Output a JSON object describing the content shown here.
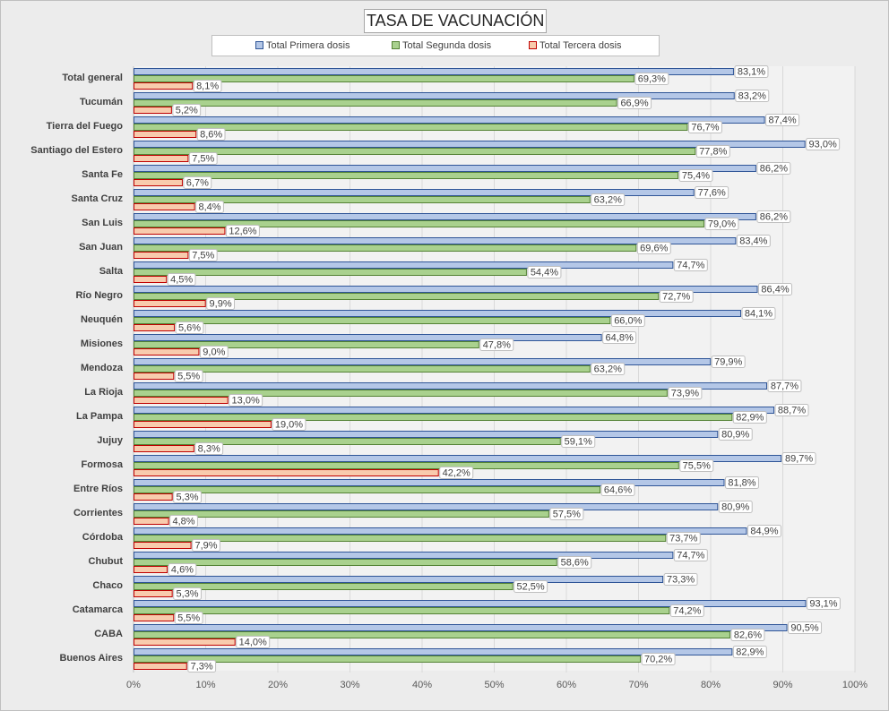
{
  "chart_data": {
    "type": "bar",
    "orientation": "horizontal",
    "title": "TASA DE VACUNACIÓN",
    "categories": [
      "Total general",
      "Tucumán",
      "Tierra del Fuego",
      "Santiago del Estero",
      "Santa Fe",
      "Santa Cruz",
      "San Luis",
      "San Juan",
      "Salta",
      "Río Negro",
      "Neuquén",
      "Misiones",
      "Mendoza",
      "La Rioja",
      "La Pampa",
      "Jujuy",
      "Formosa",
      "Entre Ríos",
      "Corrientes",
      "Córdoba",
      "Chubut",
      "Chaco",
      "Catamarca",
      "CABA",
      "Buenos Aires"
    ],
    "series": [
      {
        "name": "Total Primera dosis",
        "color": "#b4c7e7",
        "stroke": "#2f5597",
        "values": [
          83.1,
          83.2,
          87.4,
          93.0,
          86.2,
          77.6,
          86.2,
          83.4,
          74.7,
          86.4,
          84.1,
          64.8,
          79.9,
          87.7,
          88.7,
          80.9,
          89.7,
          81.8,
          80.9,
          84.9,
          74.7,
          73.3,
          93.1,
          90.5,
          82.9
        ],
        "labels": [
          "83,1%",
          "83,2%",
          "87,4%",
          "93,0%",
          "86,2%",
          "77,6%",
          "86,2%",
          "83,4%",
          "74,7%",
          "86,4%",
          "84,1%",
          "64,8%",
          "79,9%",
          "87,7%",
          "88,7%",
          "80,9%",
          "89,7%",
          "81,8%",
          "80,9%",
          "84,9%",
          "74,7%",
          "73,3%",
          "93,1%",
          "90,5%",
          "82,9%"
        ]
      },
      {
        "name": "Total Segunda dosis",
        "color": "#a9d18e",
        "stroke": "#548235",
        "values": [
          69.3,
          66.9,
          76.7,
          77.8,
          75.4,
          63.2,
          79.0,
          69.6,
          54.4,
          72.7,
          66.0,
          47.8,
          63.2,
          73.9,
          82.9,
          59.1,
          75.5,
          64.6,
          57.5,
          73.7,
          58.6,
          52.5,
          74.2,
          82.6,
          70.2
        ],
        "labels": [
          "69,3%",
          "66,9%",
          "76,7%",
          "77,8%",
          "75,4%",
          "63,2%",
          "79,0%",
          "69,6%",
          "54,4%",
          "72,7%",
          "66,0%",
          "47,8%",
          "63,2%",
          "73,9%",
          "82,9%",
          "59,1%",
          "75,5%",
          "64,6%",
          "57,5%",
          "73,7%",
          "58,6%",
          "52,5%",
          "74,2%",
          "82,6%",
          "70,2%"
        ]
      },
      {
        "name": "Total Tercera dosis",
        "color": "#f8cbad",
        "stroke": "#c00000",
        "values": [
          8.1,
          5.2,
          8.6,
          7.5,
          6.7,
          8.4,
          12.6,
          7.5,
          4.5,
          9.9,
          5.6,
          9.0,
          5.5,
          13.0,
          19.0,
          8.3,
          42.2,
          5.3,
          4.8,
          7.9,
          4.6,
          5.3,
          5.5,
          14.0,
          7.3
        ],
        "labels": [
          "8,1%",
          "5,2%",
          "8,6%",
          "7,5%",
          "6,7%",
          "8,4%",
          "12,6%",
          "7,5%",
          "4,5%",
          "9,9%",
          "5,6%",
          "9,0%",
          "5,5%",
          "13,0%",
          "19,0%",
          "8,3%",
          "42,2%",
          "5,3%",
          "4,8%",
          "7,9%",
          "4,6%",
          "5,3%",
          "5,5%",
          "14,0%",
          "7,3%"
        ]
      }
    ],
    "xlim": [
      0,
      100
    ],
    "xticks": [
      "0%",
      "10%",
      "20%",
      "30%",
      "40%",
      "50%",
      "60%",
      "70%",
      "80%",
      "90%",
      "100%"
    ],
    "grid": true,
    "legend_position": "top"
  }
}
